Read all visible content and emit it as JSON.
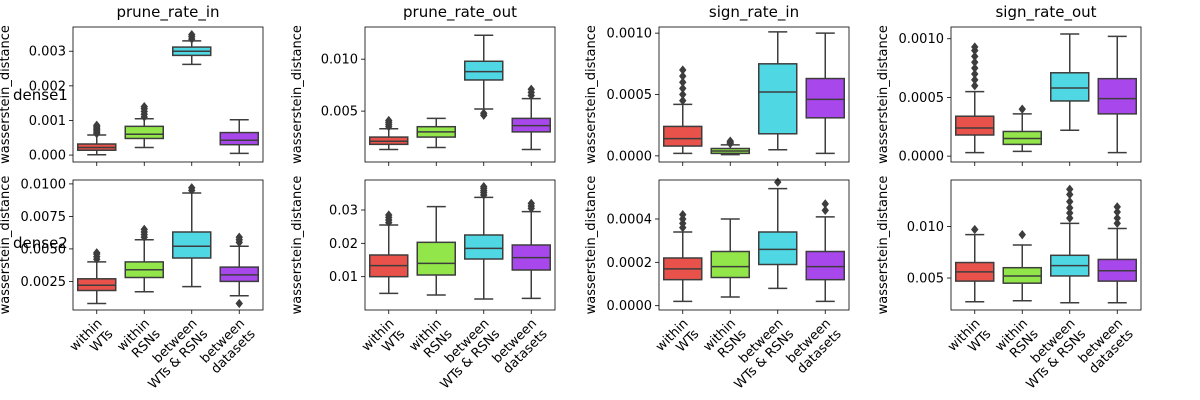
{
  "chart_data": {
    "type": "box",
    "categories": [
      "within\nWTs",
      "within\nRSNs",
      "between\nWTs & RSNs",
      "between\ndatasets"
    ],
    "colors": [
      "#e8524a",
      "#92e649",
      "#4fd8e4",
      "#a847ec"
    ],
    "row_labels": [
      "dense1",
      "dense2"
    ],
    "col_titles": [
      "prune_rate_in",
      "prune_rate_out",
      "sign_rate_in",
      "sign_rate_out"
    ],
    "ylabel": "wasserstein_distance",
    "panels": [
      {
        "row": 0,
        "col": 0,
        "ylim": [
          -0.0002,
          0.0037
        ],
        "yticks": [
          0,
          0.001,
          0.002,
          0.003
        ],
        "yticklabels": [
          "0.000",
          "0.001",
          "0.002",
          "0.003"
        ],
        "boxes": [
          {
            "wlo": 1e-05,
            "q1": 0.00014,
            "med": 0.00022,
            "q3": 0.00032,
            "whi": 0.00058,
            "fliers": [
              0.00062,
              0.00066,
              0.0007,
              0.00074,
              0.00078,
              0.00082,
              0.00086
            ]
          },
          {
            "wlo": 0.00022,
            "q1": 0.00048,
            "med": 0.0006,
            "q3": 0.00083,
            "whi": 0.00105,
            "fliers": [
              0.0011,
              0.00118,
              0.00126,
              0.00134,
              0.0014
            ]
          },
          {
            "wlo": 0.00262,
            "q1": 0.00288,
            "med": 0.003,
            "q3": 0.00312,
            "whi": 0.0033,
            "fliers": [
              0.00335,
              0.00342,
              0.00348
            ]
          },
          {
            "wlo": 5e-05,
            "q1": 0.0003,
            "med": 0.00043,
            "q3": 0.00065,
            "whi": 0.00102,
            "fliers": []
          }
        ]
      },
      {
        "row": 0,
        "col": 1,
        "ylim": [
          0.0001,
          0.0131
        ],
        "yticks": [
          0.005,
          0.01
        ],
        "yticklabels": [
          "0.005",
          "0.010"
        ],
        "boxes": [
          {
            "wlo": 0.0013,
            "q1": 0.0018,
            "med": 0.0021,
            "q3": 0.0025,
            "whi": 0.0033,
            "fliers": [
              0.0035,
              0.0037,
              0.0039,
              0.0041
            ]
          },
          {
            "wlo": 0.0015,
            "q1": 0.0025,
            "med": 0.003,
            "q3": 0.0035,
            "whi": 0.0043,
            "fliers": []
          },
          {
            "wlo": 0.0052,
            "q1": 0.008,
            "med": 0.0088,
            "q3": 0.0098,
            "whi": 0.0123,
            "fliers": [
              0.0046,
              0.0048
            ]
          },
          {
            "wlo": 0.0013,
            "q1": 0.003,
            "med": 0.0036,
            "q3": 0.0043,
            "whi": 0.0062,
            "fliers": [
              0.0065,
              0.0068,
              0.0071
            ]
          }
        ]
      },
      {
        "row": 0,
        "col": 2,
        "ylim": [
          -5e-05,
          0.00105
        ],
        "yticks": [
          0,
          0.0005,
          0.001
        ],
        "yticklabels": [
          "0.0000",
          "0.0005",
          "0.0010"
        ],
        "boxes": [
          {
            "wlo": 2e-05,
            "q1": 8e-05,
            "med": 0.00014,
            "q3": 0.00024,
            "whi": 0.00042,
            "fliers": [
              0.00045,
              0.0005,
              0.00055,
              0.0006,
              0.00065,
              0.0007
            ]
          },
          {
            "wlo": 1e-05,
            "q1": 2e-05,
            "med": 4e-05,
            "q3": 6e-05,
            "whi": 9e-05,
            "fliers": [
              0.0001,
              0.00011,
              0.00012
            ]
          },
          {
            "wlo": 5e-05,
            "q1": 0.00018,
            "med": 0.00052,
            "q3": 0.00075,
            "whi": 0.00101,
            "fliers": []
          },
          {
            "wlo": 2e-05,
            "q1": 0.00031,
            "med": 0.00046,
            "q3": 0.00063,
            "whi": 0.001,
            "fliers": []
          }
        ]
      },
      {
        "row": 0,
        "col": 3,
        "ylim": [
          -5e-05,
          0.0011
        ],
        "yticks": [
          0,
          0.0005,
          0.001
        ],
        "yticklabels": [
          "0.0000",
          "0.0005",
          "0.0010"
        ],
        "boxes": [
          {
            "wlo": 3e-05,
            "q1": 0.00018,
            "med": 0.00024,
            "q3": 0.00034,
            "whi": 0.00055,
            "fliers": [
              0.0006,
              0.00065,
              0.0007,
              0.00075,
              0.0008,
              0.00085,
              0.0009,
              0.00093
            ]
          },
          {
            "wlo": 4e-05,
            "q1": 0.0001,
            "med": 0.00015,
            "q3": 0.00021,
            "whi": 0.00036,
            "fliers": [
              0.0004
            ]
          },
          {
            "wlo": 0.00022,
            "q1": 0.00047,
            "med": 0.00058,
            "q3": 0.00071,
            "whi": 0.00104,
            "fliers": []
          },
          {
            "wlo": 3e-05,
            "q1": 0.00036,
            "med": 0.00049,
            "q3": 0.00066,
            "whi": 0.00102,
            "fliers": []
          }
        ]
      },
      {
        "row": 1,
        "col": 0,
        "ylim": [
          0.0003,
          0.0103
        ],
        "yticks": [
          0.0025,
          0.005,
          0.0075,
          0.01
        ],
        "yticklabels": [
          "0.0025",
          "0.0050",
          "0.0075",
          "0.0100"
        ],
        "boxes": [
          {
            "wlo": 0.0008,
            "q1": 0.0018,
            "med": 0.0022,
            "q3": 0.0027,
            "whi": 0.004,
            "fliers": [
              0.0042,
              0.0044,
              0.0046,
              0.0047
            ]
          },
          {
            "wlo": 0.0017,
            "q1": 0.0028,
            "med": 0.0034,
            "q3": 0.004,
            "whi": 0.0057,
            "fliers": [
              0.0059,
              0.0061,
              0.0063,
              0.0065
            ]
          },
          {
            "wlo": 0.0021,
            "q1": 0.0043,
            "med": 0.0052,
            "q3": 0.0063,
            "whi": 0.0093,
            "fliers": [
              0.0095,
              0.0097
            ]
          },
          {
            "wlo": 0.0014,
            "q1": 0.0025,
            "med": 0.003,
            "q3": 0.0036,
            "whi": 0.0052,
            "fliers": [
              0.0055,
              0.0057,
              0.0059,
              0.0008
            ]
          }
        ]
      },
      {
        "row": 1,
        "col": 1,
        "ylim": [
          0.0,
          0.039
        ],
        "yticks": [
          0.01,
          0.02,
          0.03
        ],
        "yticklabels": [
          "0.01",
          "0.02",
          "0.03"
        ],
        "boxes": [
          {
            "wlo": 0.005,
            "q1": 0.01,
            "med": 0.0133,
            "q3": 0.0165,
            "whi": 0.0255,
            "fliers": [
              0.0262,
              0.027,
              0.0278,
              0.0285
            ]
          },
          {
            "wlo": 0.0045,
            "q1": 0.0105,
            "med": 0.014,
            "q3": 0.0203,
            "whi": 0.031,
            "fliers": []
          },
          {
            "wlo": 0.0033,
            "q1": 0.0153,
            "med": 0.0185,
            "q3": 0.0225,
            "whi": 0.0338,
            "fliers": [
              0.0345,
              0.0352,
              0.0358,
              0.0365,
              0.037
            ]
          },
          {
            "wlo": 0.0035,
            "q1": 0.012,
            "med": 0.0157,
            "q3": 0.0195,
            "whi": 0.0295,
            "fliers": [
              0.0305,
              0.0312,
              0.032
            ]
          }
        ]
      },
      {
        "row": 1,
        "col": 2,
        "ylim": [
          -2e-05,
          0.00058
        ],
        "yticks": [
          0,
          0.0002,
          0.0004
        ],
        "yticklabels": [
          "0.0000",
          "0.0002",
          "0.0004"
        ],
        "boxes": [
          {
            "wlo": 2e-05,
            "q1": 0.00012,
            "med": 0.00017,
            "q3": 0.00022,
            "whi": 0.00034,
            "fliers": [
              0.00036,
              0.00038,
              0.0004,
              0.00042
            ]
          },
          {
            "wlo": 4e-05,
            "q1": 0.00013,
            "med": 0.00018,
            "q3": 0.00025,
            "whi": 0.0004,
            "fliers": []
          },
          {
            "wlo": 8e-05,
            "q1": 0.00019,
            "med": 0.00026,
            "q3": 0.00034,
            "whi": 0.00054,
            "fliers": [
              0.00057
            ]
          },
          {
            "wlo": 2e-05,
            "q1": 0.00012,
            "med": 0.00018,
            "q3": 0.00025,
            "whi": 0.00041,
            "fliers": [
              0.00044,
              0.00047
            ]
          }
        ]
      },
      {
        "row": 1,
        "col": 3,
        "ylim": [
          0.0019,
          0.0145
        ],
        "yticks": [
          0.005,
          0.01
        ],
        "yticklabels": [
          "0.005",
          "0.010"
        ],
        "boxes": [
          {
            "wlo": 0.0027,
            "q1": 0.0047,
            "med": 0.0056,
            "q3": 0.0065,
            "whi": 0.0092,
            "fliers": [
              0.0097
            ]
          },
          {
            "wlo": 0.0028,
            "q1": 0.0045,
            "med": 0.0052,
            "q3": 0.006,
            "whi": 0.0082,
            "fliers": [
              0.0092
            ]
          },
          {
            "wlo": 0.0026,
            "q1": 0.0052,
            "med": 0.0062,
            "q3": 0.0072,
            "whi": 0.0103,
            "fliers": [
              0.0108,
              0.0113,
              0.0118,
              0.0124,
              0.0131,
              0.0136
            ]
          },
          {
            "wlo": 0.0026,
            "q1": 0.0047,
            "med": 0.0057,
            "q3": 0.0068,
            "whi": 0.0098,
            "fliers": [
              0.0103,
              0.0108,
              0.0114,
              0.0119
            ]
          }
        ]
      }
    ]
  }
}
